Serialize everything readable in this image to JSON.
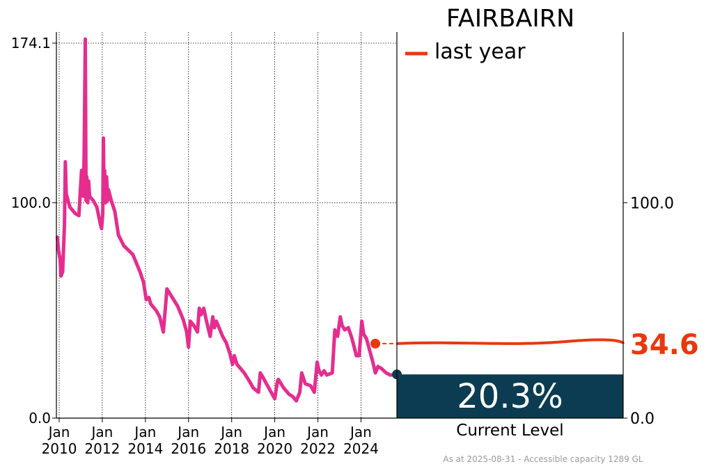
{
  "chart_data": {
    "type": "line",
    "title": "FAIRBAIRN",
    "legend": {
      "label": "last year",
      "color": "#e8380d",
      "placement": "top-right"
    },
    "xlim": [
      "2009-11-15",
      "2025-08-31"
    ],
    "ylim": [
      0,
      174.1
    ],
    "y_ticks": [
      0.0,
      100.0,
      174.1
    ],
    "y_tick_labels": [
      "0.0",
      "100.0",
      "174.1"
    ],
    "x_ticks": [
      "2010-01-01",
      "2012-01-01",
      "2014-01-01",
      "2016-01-01",
      "2018-01-01",
      "2020-01-01",
      "2022-01-01",
      "2024-01-01"
    ],
    "x_tick_labels": [
      [
        "Jan",
        "2010"
      ],
      [
        "Jan",
        "2012"
      ],
      [
        "Jan",
        "2014"
      ],
      [
        "Jan",
        "2016"
      ],
      [
        "Jan",
        "2018"
      ],
      [
        "Jan",
        "2020"
      ],
      [
        "Jan",
        "2022"
      ],
      [
        "Jan",
        "2024"
      ]
    ],
    "grid": true,
    "series": [
      {
        "color": "#e52d8f",
        "points": [
          [
            "2009-12-01",
            84
          ],
          [
            "2009-12-20",
            78
          ],
          [
            "2010-01-15",
            74
          ],
          [
            "2010-02-01",
            66
          ],
          [
            "2010-03-01",
            68
          ],
          [
            "2010-04-01",
            90
          ],
          [
            "2010-04-15",
            119
          ],
          [
            "2010-05-01",
            104
          ],
          [
            "2010-07-01",
            98
          ],
          [
            "2010-10-01",
            95
          ],
          [
            "2010-12-01",
            94
          ],
          [
            "2011-01-15",
            115
          ],
          [
            "2011-02-15",
            103
          ],
          [
            "2011-03-01",
            124
          ],
          [
            "2011-03-20",
            176
          ],
          [
            "2011-04-01",
            101
          ],
          [
            "2011-04-15",
            112
          ],
          [
            "2011-05-01",
            100
          ],
          [
            "2011-05-15",
            110
          ],
          [
            "2011-06-01",
            103
          ],
          [
            "2011-08-01",
            101
          ],
          [
            "2011-10-01",
            98
          ],
          [
            "2011-12-01",
            90
          ],
          [
            "2011-12-20",
            88
          ],
          [
            "2012-01-10",
            95
          ],
          [
            "2012-01-20",
            130
          ],
          [
            "2012-02-01",
            100
          ],
          [
            "2012-02-10",
            115
          ],
          [
            "2012-02-25",
            100
          ],
          [
            "2012-03-15",
            112
          ],
          [
            "2012-04-01",
            101
          ],
          [
            "2012-04-15",
            106
          ],
          [
            "2012-06-01",
            101
          ],
          [
            "2012-08-01",
            96
          ],
          [
            "2012-10-01",
            85
          ],
          [
            "2013-01-01",
            80
          ],
          [
            "2013-06-01",
            76
          ],
          [
            "2013-10-01",
            68
          ],
          [
            "2013-12-01",
            63
          ],
          [
            "2014-01-15",
            55
          ],
          [
            "2014-03-01",
            56
          ],
          [
            "2014-04-01",
            53
          ],
          [
            "2014-07-01",
            50
          ],
          [
            "2014-09-01",
            47
          ],
          [
            "2014-11-01",
            40
          ],
          [
            "2015-01-01",
            60
          ],
          [
            "2015-04-01",
            56
          ],
          [
            "2015-07-01",
            52
          ],
          [
            "2015-10-01",
            46
          ],
          [
            "2015-12-01",
            40
          ],
          [
            "2016-01-01",
            33
          ],
          [
            "2016-02-01",
            45
          ],
          [
            "2016-04-01",
            43
          ],
          [
            "2016-06-01",
            40
          ],
          [
            "2016-07-01",
            51
          ],
          [
            "2016-08-01",
            48
          ],
          [
            "2016-09-15",
            51
          ],
          [
            "2016-11-01",
            45
          ],
          [
            "2017-01-01",
            38
          ],
          [
            "2017-02-15",
            47
          ],
          [
            "2017-03-15",
            42
          ],
          [
            "2017-04-15",
            45
          ],
          [
            "2017-06-01",
            42
          ],
          [
            "2017-08-01",
            38
          ],
          [
            "2017-10-01",
            35
          ],
          [
            "2017-12-01",
            30
          ],
          [
            "2018-01-15",
            25
          ],
          [
            "2018-02-15",
            29
          ],
          [
            "2018-04-01",
            25
          ],
          [
            "2018-08-01",
            21
          ],
          [
            "2018-11-01",
            17
          ],
          [
            "2019-01-01",
            14
          ],
          [
            "2019-04-01",
            12
          ],
          [
            "2019-05-01",
            21
          ],
          [
            "2019-06-15",
            19
          ],
          [
            "2019-09-01",
            15
          ],
          [
            "2019-11-01",
            12
          ],
          [
            "2020-01-01",
            9
          ],
          [
            "2020-02-15",
            17
          ],
          [
            "2020-03-01",
            18
          ],
          [
            "2020-06-01",
            14
          ],
          [
            "2020-09-01",
            11
          ],
          [
            "2020-11-01",
            10
          ],
          [
            "2021-01-01",
            8
          ],
          [
            "2021-03-01",
            12
          ],
          [
            "2021-04-01",
            21
          ],
          [
            "2021-06-01",
            16
          ],
          [
            "2021-09-01",
            15
          ],
          [
            "2021-11-01",
            12
          ],
          [
            "2021-12-20",
            26
          ],
          [
            "2022-01-20",
            22
          ],
          [
            "2022-03-01",
            20
          ],
          [
            "2022-04-15",
            22
          ],
          [
            "2022-06-01",
            20
          ],
          [
            "2022-09-01",
            21
          ],
          [
            "2022-10-15",
            41
          ],
          [
            "2022-12-01",
            38
          ],
          [
            "2023-01-15",
            47
          ],
          [
            "2023-02-15",
            43
          ],
          [
            "2023-04-01",
            41
          ],
          [
            "2023-06-01",
            42
          ],
          [
            "2023-08-01",
            37
          ],
          [
            "2023-10-15",
            29
          ],
          [
            "2023-12-01",
            29
          ],
          [
            "2024-01-15",
            45
          ],
          [
            "2024-02-15",
            39
          ],
          [
            "2024-04-01",
            37
          ],
          [
            "2024-06-01",
            31
          ],
          [
            "2024-07-20",
            26
          ],
          [
            "2024-09-01",
            21
          ],
          [
            "2024-10-15",
            24
          ],
          [
            "2024-12-15",
            23
          ],
          [
            "2025-03-01",
            21
          ],
          [
            "2025-05-15",
            20
          ],
          [
            "2025-08-31",
            20.3
          ]
        ]
      }
    ],
    "last_year_marker": {
      "x": "2024-08-31",
      "y": 34.6
    },
    "last_year_value_label": "34.6",
    "right_axis": {
      "ticks": [
        0.0,
        100.0
      ],
      "tick_labels": [
        "0.0",
        "100.0"
      ]
    },
    "current_level": {
      "percent": 20.3,
      "percent_label": "20.3%",
      "label": "Current Level",
      "color": "#0c3c52"
    },
    "footnote": "As at 2025-08-31 - Accessible capacity 1289 GL"
  }
}
